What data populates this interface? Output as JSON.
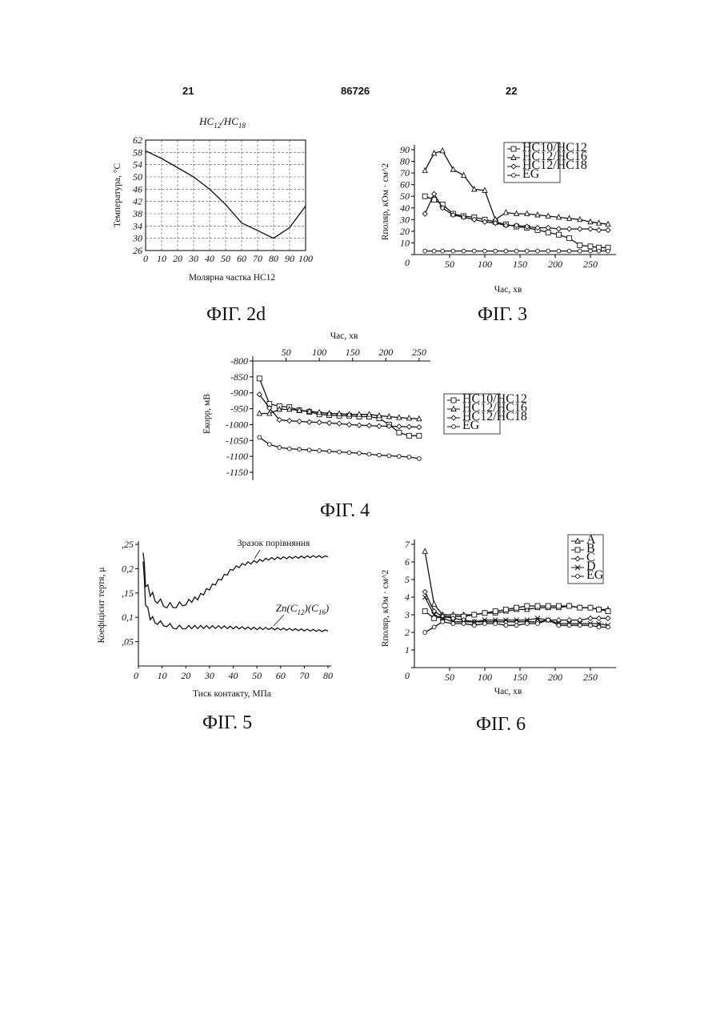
{
  "header": {
    "left": "21",
    "center": "86726",
    "right": "22"
  },
  "captions": {
    "fig2d": "ФІГ. 2d",
    "fig3": "ФІГ. 3",
    "fig4": "ФІГ. 4",
    "fig5": "ФІГ. 5",
    "fig6": "ФІГ. 6"
  },
  "chart_data": [
    {
      "id": "fig2d",
      "type": "line",
      "title": "HC12/HC18",
      "xlabel": "Молярна частка НС12",
      "ylabel": "Температура, °C",
      "xlim": [
        0,
        100
      ],
      "ylim": [
        26,
        62
      ],
      "grid": true,
      "xticks": [
        0,
        10,
        20,
        30,
        40,
        50,
        60,
        70,
        80,
        90,
        100
      ],
      "yticks": [
        26,
        30,
        34,
        38,
        42,
        46,
        50,
        54,
        58,
        62
      ],
      "series": [
        {
          "x": [
            0,
            10,
            20,
            30,
            40,
            50,
            60,
            70,
            80,
            90,
            100
          ],
          "y": [
            58.5,
            56,
            53,
            50,
            46,
            41,
            35,
            32.5,
            30,
            33.5,
            40.5
          ]
        }
      ]
    },
    {
      "id": "fig3",
      "type": "line",
      "xlabel": "Час, хв",
      "ylabel": "Rполяр, кОм · см^2",
      "xlim": [
        0,
        275
      ],
      "ylim": [
        0,
        90
      ],
      "grid": false,
      "xticks": [
        50,
        100,
        150,
        200,
        250
      ],
      "yticks": [
        0,
        10,
        20,
        30,
        40,
        50,
        60,
        70,
        80,
        90
      ],
      "legend": "top-right",
      "series": [
        {
          "name": "HC10/HC12",
          "marker": "square",
          "x": [
            15,
            28,
            40,
            55,
            70,
            85,
            100,
            115,
            130,
            145,
            160,
            175,
            190,
            205,
            220,
            235,
            250,
            262,
            275
          ],
          "y": [
            50,
            47,
            43,
            35,
            33,
            32,
            30,
            28,
            26,
            24,
            23,
            21,
            19,
            17,
            14,
            8,
            7,
            6,
            6
          ]
        },
        {
          "name": "HC12/HC16",
          "marker": "triangle",
          "x": [
            15,
            28,
            40,
            55,
            70,
            85,
            100,
            115,
            130,
            145,
            160,
            175,
            190,
            205,
            220,
            235,
            250,
            262,
            275
          ],
          "y": [
            72,
            87,
            89,
            73,
            68,
            56,
            55,
            30,
            36,
            35,
            35,
            34,
            33,
            32,
            31,
            30,
            28,
            27,
            26
          ]
        },
        {
          "name": "HC12/HC18",
          "marker": "diamond",
          "x": [
            15,
            28,
            40,
            55,
            70,
            85,
            100,
            115,
            130,
            145,
            160,
            175,
            190,
            205,
            220,
            235,
            250,
            262,
            275
          ],
          "y": [
            35,
            52,
            40,
            34,
            32,
            30,
            28,
            27,
            25,
            25,
            24,
            23,
            23,
            22,
            22,
            22,
            22,
            21,
            21
          ]
        },
        {
          "name": "EG",
          "marker": "circle",
          "x": [
            15,
            28,
            40,
            55,
            70,
            85,
            100,
            115,
            130,
            145,
            160,
            175,
            190,
            205,
            220,
            235,
            250,
            262,
            275
          ],
          "y": [
            3,
            3,
            3,
            3,
            3,
            3,
            3,
            3,
            3,
            3,
            3,
            3,
            3,
            3,
            3,
            3,
            3,
            3,
            3
          ]
        }
      ]
    },
    {
      "id": "fig4",
      "type": "line",
      "xlabel": "Час, хв",
      "ylabel": "Екорр, мВ",
      "xlim": [
        0,
        255
      ],
      "ylim": [
        -1150,
        -800
      ],
      "grid": false,
      "xticks": [
        50,
        100,
        150,
        200,
        250
      ],
      "yticks": [
        -800,
        -850,
        -900,
        -950,
        -1000,
        -1050,
        -1100,
        -1150
      ],
      "legend": "right",
      "series": [
        {
          "name": "HC10/HC12",
          "marker": "square",
          "x": [
            10,
            25,
            40,
            55,
            70,
            85,
            100,
            115,
            130,
            145,
            160,
            175,
            190,
            205,
            220,
            235,
            250
          ],
          "y": [
            -855,
            -935,
            -942,
            -945,
            -955,
            -960,
            -968,
            -970,
            -972,
            -972,
            -975,
            -975,
            -980,
            -1000,
            -1025,
            -1035,
            -1035
          ]
        },
        {
          "name": "HC12/HC16",
          "marker": "triangle",
          "x": [
            10,
            25,
            40,
            55,
            70,
            85,
            100,
            115,
            130,
            145,
            160,
            175,
            190,
            205,
            220,
            235,
            250
          ],
          "y": [
            -965,
            -965,
            -952,
            -952,
            -955,
            -958,
            -962,
            -965,
            -966,
            -968,
            -968,
            -968,
            -972,
            -975,
            -978,
            -980,
            -982
          ]
        },
        {
          "name": "HC12/HC18",
          "marker": "diamond",
          "x": [
            10,
            25,
            40,
            55,
            70,
            85,
            100,
            115,
            130,
            145,
            160,
            175,
            190,
            205,
            220,
            235,
            250
          ],
          "y": [
            -905,
            -948,
            -985,
            -988,
            -990,
            -992,
            -993,
            -995,
            -997,
            -1000,
            -1002,
            -1003,
            -1005,
            -1005,
            -1006,
            -1007,
            -1008
          ]
        },
        {
          "name": "EG",
          "marker": "circle",
          "x": [
            10,
            25,
            40,
            55,
            70,
            85,
            100,
            115,
            130,
            145,
            160,
            175,
            190,
            205,
            220,
            235,
            250
          ],
          "y": [
            -1040,
            -1062,
            -1072,
            -1076,
            -1078,
            -1080,
            -1082,
            -1084,
            -1086,
            -1088,
            -1090,
            -1093,
            -1096,
            -1098,
            -1100,
            -1102,
            -1107
          ]
        }
      ]
    },
    {
      "id": "fig5",
      "type": "line",
      "xlabel": "Тиск контакту, МПа",
      "ylabel": "Коефіцієнт тертя, μ",
      "xlim": [
        0,
        80
      ],
      "ylim": [
        0,
        0.25
      ],
      "grid": false,
      "xticks": [
        0,
        10,
        20,
        30,
        40,
        50,
        60,
        70,
        80
      ],
      "yticks": [
        0.05,
        0.1,
        0.15,
        0.2,
        0.25
      ],
      "ytick_labels": [
        ",05",
        "0,1",
        ",15",
        "0,2",
        ",25"
      ],
      "annotations": [
        "Зразок порівняння",
        "Zn(C12)(C16)"
      ],
      "series": [
        {
          "name": "Зразок порівняння",
          "x": [
            2,
            3,
            5,
            8,
            12,
            16,
            20,
            25,
            30,
            35,
            40,
            45,
            50,
            55,
            60,
            65,
            70,
            75,
            80
          ],
          "y": [
            0.24,
            0.17,
            0.15,
            0.135,
            0.125,
            0.125,
            0.13,
            0.14,
            0.16,
            0.18,
            0.2,
            0.21,
            0.215,
            0.22,
            0.222,
            0.223,
            0.224,
            0.225,
            0.224
          ]
        },
        {
          "name": "Zn(C12)(C16)",
          "x": [
            2,
            3,
            5,
            8,
            12,
            16,
            20,
            25,
            30,
            35,
            40,
            45,
            50,
            55,
            60,
            65,
            70,
            75,
            80
          ],
          "y": [
            0.22,
            0.13,
            0.1,
            0.09,
            0.085,
            0.08,
            0.08,
            0.08,
            0.08,
            0.08,
            0.079,
            0.078,
            0.077,
            0.077,
            0.076,
            0.075,
            0.074,
            0.073,
            0.072
          ]
        }
      ]
    },
    {
      "id": "fig6",
      "type": "line",
      "xlabel": "Час, хв",
      "ylabel": "Rполяр, кОм · см^2",
      "xlim": [
        0,
        275
      ],
      "ylim": [
        0,
        7
      ],
      "grid": false,
      "xticks": [
        50,
        100,
        150,
        200,
        250
      ],
      "yticks": [
        0,
        1,
        2,
        3,
        4,
        5,
        6,
        7
      ],
      "legend": "top-right",
      "series": [
        {
          "name": "A",
          "marker": "triangle",
          "x": [
            15,
            28,
            40,
            55,
            70,
            85,
            100,
            115,
            130,
            145,
            160,
            175,
            190,
            205,
            220,
            235,
            250,
            262,
            275
          ],
          "y": [
            6.6,
            3.6,
            3.0,
            3.0,
            3.0,
            3.0,
            3.1,
            3.1,
            3.2,
            3.3,
            3.3,
            3.4,
            3.4,
            3.4,
            3.5,
            3.4,
            3.4,
            3.3,
            3.3
          ]
        },
        {
          "name": "B",
          "marker": "square",
          "x": [
            15,
            28,
            40,
            55,
            70,
            85,
            100,
            115,
            130,
            145,
            160,
            175,
            190,
            205,
            220,
            235,
            250,
            262,
            275
          ],
          "y": [
            3.2,
            2.8,
            2.9,
            2.9,
            2.9,
            3.0,
            3.1,
            3.2,
            3.3,
            3.4,
            3.5,
            3.5,
            3.5,
            3.5,
            3.5,
            3.4,
            3.4,
            3.3,
            3.2
          ]
        },
        {
          "name": "C",
          "marker": "diamond",
          "x": [
            15,
            28,
            40,
            55,
            70,
            85,
            100,
            115,
            130,
            145,
            160,
            175,
            190,
            205,
            220,
            235,
            250,
            262,
            275
          ],
          "y": [
            4.3,
            3.2,
            2.9,
            2.8,
            2.7,
            2.6,
            2.6,
            2.6,
            2.6,
            2.6,
            2.6,
            2.6,
            2.7,
            2.7,
            2.7,
            2.7,
            2.8,
            2.8,
            2.8
          ]
        },
        {
          "name": "D",
          "marker": "x",
          "x": [
            15,
            28,
            40,
            55,
            70,
            85,
            100,
            115,
            130,
            145,
            160,
            175,
            190,
            205,
            220,
            235,
            250,
            262,
            275
          ],
          "y": [
            4.0,
            3.0,
            2.8,
            2.6,
            2.6,
            2.6,
            2.7,
            2.7,
            2.7,
            2.7,
            2.7,
            2.8,
            2.7,
            2.5,
            2.5,
            2.5,
            2.5,
            2.5,
            2.4
          ]
        },
        {
          "name": "EG",
          "marker": "circle",
          "x": [
            15,
            28,
            40,
            55,
            70,
            85,
            100,
            115,
            130,
            145,
            160,
            175,
            190,
            205,
            220,
            235,
            250,
            262,
            275
          ],
          "y": [
            2.0,
            2.3,
            2.6,
            2.5,
            2.5,
            2.4,
            2.5,
            2.5,
            2.4,
            2.4,
            2.5,
            2.5,
            2.7,
            2.4,
            2.4,
            2.4,
            2.4,
            2.3,
            2.3
          ]
        }
      ]
    }
  ]
}
